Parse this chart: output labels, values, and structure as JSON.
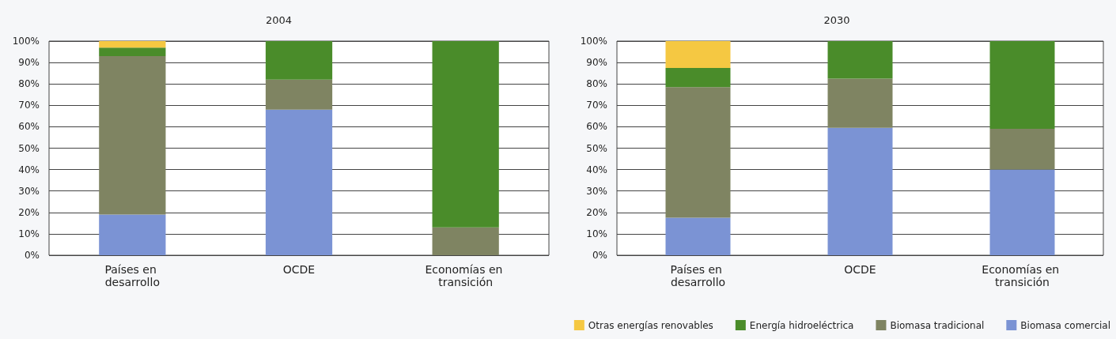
{
  "chart_data": [
    {
      "type": "bar",
      "title": "2004",
      "stacked": true,
      "categories": [
        "Países en desarrollo",
        "OCDE",
        "Economías en transición"
      ],
      "series": [
        {
          "color": "#7b93d4",
          "values": [
            19,
            68,
            0
          ]
        },
        {
          "color": "#7f8462",
          "values": [
            74,
            14,
            13
          ]
        },
        {
          "color": "#4a8c2a",
          "values": [
            4,
            18,
            87
          ]
        },
        {
          "color": "#f5c842",
          "values": [
            3,
            0,
            0
          ]
        }
      ],
      "ylim": [
        0,
        100
      ],
      "yticks": [
        {
          "value": 0,
          "label": "0%"
        },
        {
          "value": 10,
          "label": "10%"
        },
        {
          "value": 20,
          "label": "20%"
        },
        {
          "value": 30,
          "label": "30%"
        },
        {
          "value": 40,
          "label": "40%"
        },
        {
          "value": 50,
          "label": "50%"
        },
        {
          "value": 60,
          "label": "60%"
        },
        {
          "value": 70,
          "label": "70%"
        },
        {
          "value": 80,
          "label": "80%"
        },
        {
          "value": 90,
          "label": "90%"
        },
        {
          "value": 100,
          "label": "100%"
        }
      ],
      "grid": "y",
      "legend": false
    },
    {
      "type": "bar",
      "title": "2030",
      "stacked": true,
      "categories": [
        "Países en desarrollo",
        "OCDE",
        "Economías en transición"
      ],
      "series": [
        {
          "name": "Biomasa comercial",
          "color": "#7b93d4",
          "values": [
            17.5,
            59.5,
            40
          ]
        },
        {
          "name": "Biomasa tradicional",
          "color": "#7f8462",
          "values": [
            61,
            23,
            19
          ]
        },
        {
          "name": "Energía hidroeléctrica",
          "color": "#4a8c2a",
          "values": [
            9,
            17.5,
            41
          ]
        },
        {
          "name": "Otras energías renovables",
          "color": "#f5c842",
          "values": [
            12.5,
            0,
            0
          ]
        }
      ],
      "ylim": [
        0,
        100
      ],
      "yticks": [
        {
          "value": 0,
          "label": "0%"
        },
        {
          "value": 10,
          "label": "10%"
        },
        {
          "value": 20,
          "label": "20%"
        },
        {
          "value": 30,
          "label": "30%"
        },
        {
          "value": 40,
          "label": "40%"
        },
        {
          "value": 50,
          "label": "50%"
        },
        {
          "value": 60,
          "label": "60%"
        },
        {
          "value": 70,
          "label": "70%"
        },
        {
          "value": 80,
          "label": "80%"
        },
        {
          "value": 90,
          "label": "90%"
        },
        {
          "value": 100,
          "label": "100%"
        }
      ],
      "grid": "y",
      "legend": "bottom right"
    }
  ]
}
